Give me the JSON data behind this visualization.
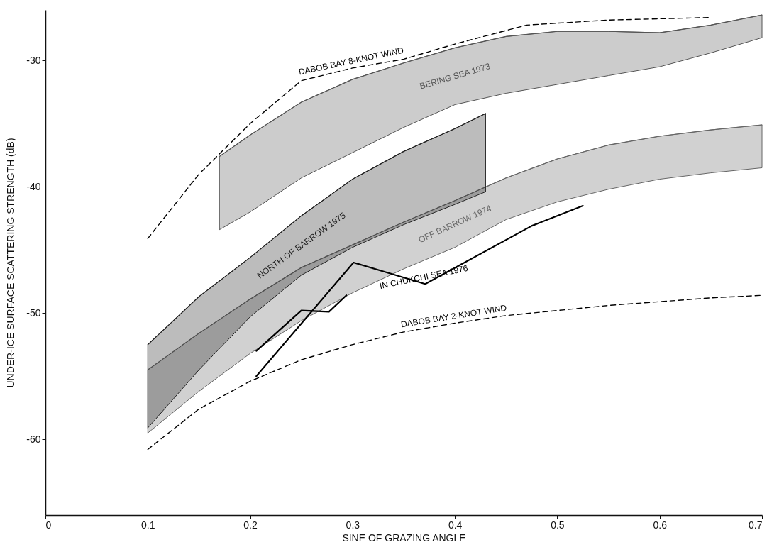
{
  "chart_data": {
    "type": "line",
    "xlabel": "SINE OF GRAZING ANGLE",
    "ylabel": "UNDER-ICE SURFACE SCATTERING STRENGTH (dB)",
    "xlim": [
      0,
      0.7
    ],
    "ylim": [
      -66,
      -26
    ],
    "xticks": [
      0,
      0.1,
      0.2,
      0.3,
      0.4,
      0.5,
      0.6,
      0.7
    ],
    "yticks": [
      -60,
      -50,
      -40,
      -30
    ],
    "grid": false,
    "series": [
      {
        "name": "BERING SEA 1973",
        "color": "#555555",
        "x": [
          0.17,
          0.2,
          0.25,
          0.3,
          0.35,
          0.4,
          0.45,
          0.5,
          0.55,
          0.6,
          0.65,
          0.7
        ],
        "values": [
          -37.6,
          -35.9,
          -33.3,
          -31.5,
          -30.2,
          -29.0,
          -28.1,
          -27.7,
          -27.7,
          -27.8,
          -27.2,
          -26.4
        ],
        "lower": [
          -43.4,
          -42.0,
          -39.3,
          -37.3,
          -35.3,
          -33.5,
          -32.6,
          -31.9,
          -31.2,
          -30.5,
          -29.4,
          -28.2
        ],
        "upper": [
          -37.6,
          -35.9,
          -33.3,
          -31.5,
          -30.2,
          -29.0,
          -28.1,
          -27.7,
          -27.7,
          -27.8,
          -27.2,
          -26.4
        ]
      },
      {
        "name": "OFF BARROW 1974",
        "color": "#666666",
        "x": [
          0.1,
          0.15,
          0.2,
          0.25,
          0.3,
          0.35,
          0.4,
          0.45,
          0.5,
          0.55,
          0.6,
          0.65,
          0.7
        ],
        "values": [
          -54.5,
          -51.6,
          -48.9,
          -46.4,
          -44.6,
          -42.8,
          -41.1,
          -39.3,
          -37.8,
          -36.7,
          -36.0,
          -35.5,
          -35.1
        ],
        "lower": [
          -59.5,
          -56.2,
          -53.2,
          -50.6,
          -48.4,
          -46.5,
          -44.8,
          -42.6,
          -41.2,
          -40.2,
          -39.4,
          -38.9,
          -38.5
        ],
        "upper": [
          -54.5,
          -51.6,
          -48.9,
          -46.4,
          -44.6,
          -42.8,
          -41.1,
          -39.3,
          -37.8,
          -36.7,
          -36.0,
          -35.5,
          -35.1
        ]
      },
      {
        "name": "NORTH OF BARROW 1975",
        "color": "#222222",
        "x": [
          0.1,
          0.15,
          0.2,
          0.25,
          0.3,
          0.35,
          0.4,
          0.43
        ],
        "values": [
          -52.5,
          -48.7,
          -45.6,
          -42.3,
          -39.4,
          -37.2,
          -35.4,
          -34.2
        ],
        "lower": [
          -59.1,
          -54.5,
          -50.3,
          -47.0,
          -44.8,
          -43.0,
          -41.4,
          -40.4
        ],
        "upper": [
          -52.5,
          -48.7,
          -45.6,
          -42.3,
          -39.4,
          -37.2,
          -35.4,
          -34.2
        ]
      },
      {
        "name": "DABOB BAY 8-KNOT WIND",
        "line_style": "dashed",
        "color": "#000000",
        "x": [
          0.1,
          0.15,
          0.2,
          0.25,
          0.3,
          0.35,
          0.4,
          0.47,
          0.55,
          0.65
        ],
        "values": [
          -44.1,
          -39.0,
          -35.0,
          -31.6,
          -30.6,
          -29.9,
          -28.7,
          -27.2,
          -26.8,
          -26.6
        ]
      },
      {
        "name": "DABOB BAY 2-KNOT WIND",
        "line_style": "dashed",
        "color": "#000000",
        "x": [
          0.1,
          0.15,
          0.2,
          0.25,
          0.3,
          0.35,
          0.4,
          0.45,
          0.5,
          0.55,
          0.6,
          0.65,
          0.7
        ],
        "values": [
          -60.8,
          -57.6,
          -55.4,
          -53.7,
          -52.5,
          -51.5,
          -50.8,
          -50.2,
          -49.8,
          -49.4,
          -49.1,
          -48.8,
          -48.6
        ]
      },
      {
        "name": "IN CHUKCHI SEA 1976",
        "line_style": "solid",
        "color": "#000000",
        "x": [
          0.206,
          0.301,
          0.371,
          0.475,
          0.525
        ],
        "values": [
          -55.0,
          -46.0,
          -47.7,
          -43.1,
          -41.5
        ]
      },
      {
        "line_style": "solid",
        "color": "#000000",
        "x": [
          0.206,
          0.25,
          0.277,
          0.294
        ],
        "values": [
          -53.0,
          -49.8,
          -49.9,
          -48.6
        ]
      }
    ]
  }
}
